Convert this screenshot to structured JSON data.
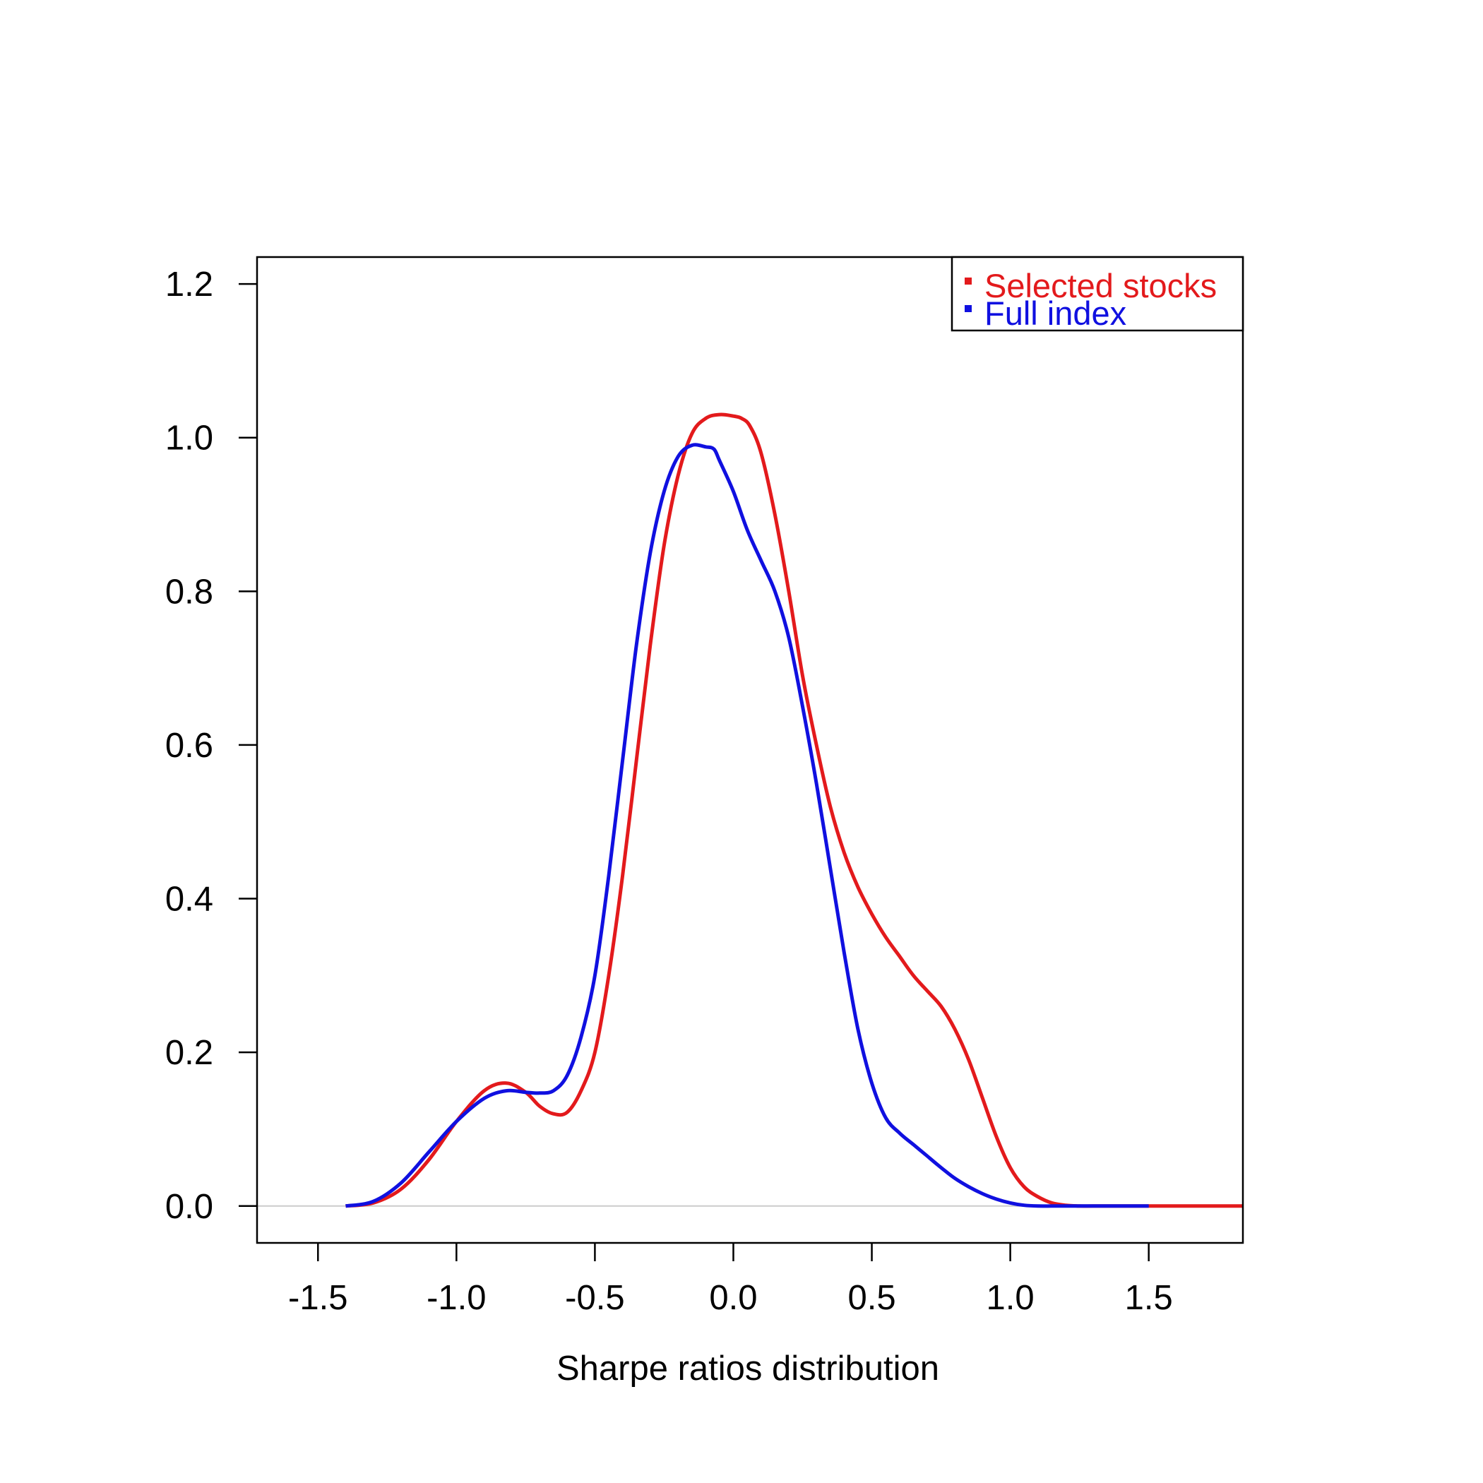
{
  "chart_data": {
    "type": "line",
    "title": "",
    "xlabel": "Sharpe ratios distribution",
    "ylabel": "",
    "xlim": [
      -1.72,
      1.84
    ],
    "ylim": [
      -0.048,
      1.235
    ],
    "x_ticks": [
      "-1.5",
      "-1.0",
      "-0.5",
      "0.0",
      "0.5",
      "1.0",
      "1.5"
    ],
    "y_ticks": [
      "0.0",
      "0.2",
      "0.4",
      "0.6",
      "0.8",
      "1.0",
      "1.2"
    ],
    "grid": false,
    "baseline": 0,
    "legend": {
      "position": "top-right"
    },
    "colors": {
      "selected": "#e31a1c",
      "full": "#1010e0",
      "axis": "#000000",
      "baseline": "#cccccc"
    },
    "series": [
      {
        "name": "Selected stocks",
        "color": "#e31a1c",
        "x": [
          -1.4,
          -1.3,
          -1.2,
          -1.1,
          -1.0,
          -0.9,
          -0.82,
          -0.75,
          -0.7,
          -0.65,
          -0.6,
          -0.55,
          -0.5,
          -0.45,
          -0.4,
          -0.35,
          -0.3,
          -0.25,
          -0.2,
          -0.15,
          -0.1,
          -0.05,
          0.0,
          0.03,
          0.06,
          0.1,
          0.15,
          0.2,
          0.25,
          0.3,
          0.35,
          0.4,
          0.45,
          0.5,
          0.55,
          0.6,
          0.65,
          0.7,
          0.75,
          0.8,
          0.85,
          0.9,
          0.95,
          1.0,
          1.05,
          1.1,
          1.15,
          1.2,
          1.25,
          1.3,
          1.4,
          1.5,
          1.6,
          1.84
        ],
        "y": [
          0.0,
          0.004,
          0.022,
          0.06,
          0.11,
          0.15,
          0.16,
          0.148,
          0.13,
          0.12,
          0.122,
          0.15,
          0.2,
          0.3,
          0.43,
          0.58,
          0.73,
          0.86,
          0.95,
          1.005,
          1.025,
          1.03,
          1.028,
          1.025,
          1.015,
          0.98,
          0.9,
          0.8,
          0.69,
          0.6,
          0.52,
          0.46,
          0.415,
          0.38,
          0.35,
          0.325,
          0.3,
          0.28,
          0.26,
          0.23,
          0.19,
          0.14,
          0.09,
          0.05,
          0.025,
          0.012,
          0.004,
          0.001,
          0.0,
          0.0,
          0.0,
          0.0,
          0.0,
          0.0
        ]
      },
      {
        "name": "Full index",
        "color": "#1010e0",
        "x": [
          -1.4,
          -1.3,
          -1.2,
          -1.1,
          -1.0,
          -0.9,
          -0.82,
          -0.75,
          -0.7,
          -0.65,
          -0.6,
          -0.55,
          -0.5,
          -0.45,
          -0.4,
          -0.35,
          -0.3,
          -0.25,
          -0.2,
          -0.15,
          -0.1,
          -0.07,
          -0.05,
          0.0,
          0.05,
          0.1,
          0.15,
          0.2,
          0.25,
          0.3,
          0.35,
          0.4,
          0.45,
          0.5,
          0.55,
          0.6,
          0.65,
          0.7,
          0.75,
          0.8,
          0.85,
          0.9,
          0.95,
          1.0,
          1.05,
          1.1,
          1.15,
          1.2,
          1.25,
          1.3,
          1.4,
          1.5
        ],
        "y": [
          0.0,
          0.006,
          0.03,
          0.07,
          0.11,
          0.14,
          0.15,
          0.148,
          0.147,
          0.15,
          0.17,
          0.22,
          0.3,
          0.43,
          0.58,
          0.73,
          0.85,
          0.93,
          0.975,
          0.99,
          0.988,
          0.985,
          0.97,
          0.93,
          0.88,
          0.84,
          0.8,
          0.74,
          0.65,
          0.55,
          0.44,
          0.33,
          0.23,
          0.16,
          0.115,
          0.095,
          0.08,
          0.065,
          0.05,
          0.036,
          0.025,
          0.016,
          0.009,
          0.004,
          0.001,
          0.0,
          0.0,
          0.0,
          0.0,
          0.0,
          0.0,
          0.0
        ]
      }
    ]
  }
}
